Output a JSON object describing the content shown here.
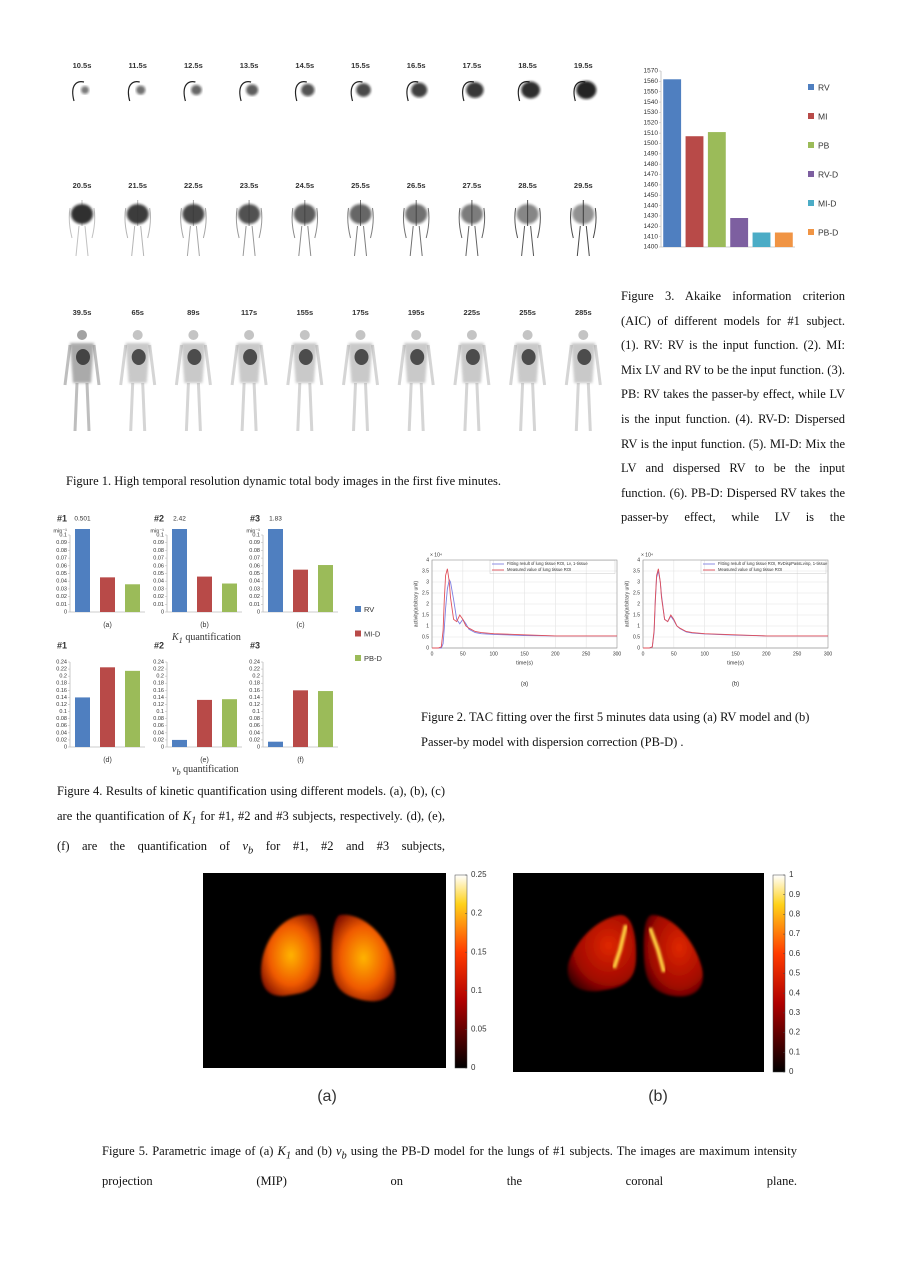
{
  "figure1": {
    "time_labels": [
      "10.5s",
      "11.5s",
      "12.5s",
      "13.5s",
      "14.5s",
      "15.5s",
      "16.5s",
      "17.5s",
      "18.5s",
      "19.5s",
      "20.5s",
      "21.5s",
      "22.5s",
      "23.5s",
      "24.5s",
      "25.5s",
      "26.5s",
      "27.5s",
      "28.5s",
      "29.5s",
      "39.5s",
      "65s",
      "89s",
      "117s",
      "155s",
      "175s",
      "195s",
      "225s",
      "255s",
      "285s"
    ],
    "caption": [
      "Figure 1. High temporal resolution dynamic total body images in the first five minutes."
    ]
  },
  "figure2": {
    "caption": [
      "Figure 2. TAC fitting over the first 5 minutes data using (a) RV model and (b) Passer-by model with dispersion correction (PB-D) ."
    ]
  },
  "figure3": {
    "caption": [
      "Figure 3. Akaike information criterion (AIC) of different models for #1 subject. (1). RV: RV is the input function. (2). MI: Mix LV and RV to be the input function. (3). PB: RV takes the passer-by effect, while LV is the input function. (4). RV-D: Dispersed RV is the input function. (5). MI-D: Mix the LV and dispersed RV to be the input function. (6). PB-D: Dispersed RV takes the passer-by effect, while LV is the"
    ]
  },
  "figure4": {
    "legend": [
      {
        "name": "RV",
        "color": "#4f7fc0"
      },
      {
        "name": "MI-D",
        "color": "#b84a48"
      },
      {
        "name": "PB-D",
        "color": "#9bbb59"
      }
    ],
    "k1_title": [
      [
        "K",
        "1"
      ],
      " quantification"
    ],
    "vb_title": [
      [
        "v",
        "b"
      ],
      " quantification"
    ],
    "caption": [
      "Figure 4. Results of kinetic quantification using different models. (a), (b), (c) are the quantification of ",
      [
        "K",
        "1"
      ],
      " for #1, #2 and #3 subjects, respectively. (d), (e), (f) are the quantification of ",
      [
        "v",
        "b"
      ],
      " for #1, #2 and #3 subjects,"
    ]
  },
  "figure5": {
    "panels": [
      {
        "label": "(a)",
        "colorbar_lim": [
          0,
          0.25
        ],
        "colorbar_ticks": [
          0,
          0.05,
          0.1,
          0.15,
          0.2,
          0.25
        ]
      },
      {
        "label": "(b)",
        "colorbar_lim": [
          0,
          1
        ],
        "colorbar_ticks": [
          0,
          0.1,
          0.2,
          0.3,
          0.4,
          0.5,
          0.6,
          0.7,
          0.8,
          0.9,
          1
        ]
      }
    ],
    "caption": [
      "Figure 5. Parametric image of (a) ",
      [
        "K",
        "1"
      ],
      " and (b) ",
      [
        "v",
        "b"
      ],
      " using the PB-D model for the lungs of #1 subjects. The images are maximum intensity projection (MIP) on the coronal plane."
    ]
  },
  "chart_data": [
    {
      "type": "bar",
      "categories": [
        "RV",
        "MI",
        "PB",
        "RV-D",
        "MI-D",
        "PB-D"
      ],
      "values": [
        1562,
        1507,
        1511,
        1428,
        1414,
        1414
      ],
      "colors": [
        "#4f7fc0",
        "#b84a48",
        "#9bbb59",
        "#7d5fa0",
        "#4bacc6",
        "#f09444"
      ],
      "ylim": [
        1400,
        1570
      ],
      "yticks": [
        1400,
        1410,
        1420,
        1430,
        1440,
        1450,
        1460,
        1470,
        1480,
        1490,
        1500,
        1510,
        1520,
        1530,
        1540,
        1550,
        1560,
        1570
      ],
      "legend": "right"
    },
    {
      "type": "bar",
      "title": "#1",
      "xlabel": "(a)",
      "unit": "min⁻¹",
      "values": [
        0.501,
        0.045,
        0.036
      ],
      "value_labels": [
        "0.501",
        null,
        null
      ],
      "ylim": [
        0,
        0.1
      ],
      "yticks": [
        0,
        0.01,
        0.02,
        0.03,
        0.04,
        0.05,
        0.06,
        0.07,
        0.08,
        0.09,
        0.1
      ]
    },
    {
      "type": "bar",
      "title": "#2",
      "xlabel": "(b)",
      "unit": "min⁻¹",
      "values": [
        2.42,
        0.046,
        0.037
      ],
      "value_labels": [
        "2.42",
        null,
        null
      ],
      "ylim": [
        0,
        0.1
      ],
      "yticks": [
        0,
        0.01,
        0.02,
        0.03,
        0.04,
        0.05,
        0.06,
        0.07,
        0.08,
        0.09,
        0.1
      ]
    },
    {
      "type": "bar",
      "title": "#3",
      "xlabel": "(c)",
      "unit": "min⁻¹",
      "values": [
        1.83,
        0.055,
        0.061
      ],
      "value_labels": [
        "1.83",
        null,
        null
      ],
      "ylim": [
        0,
        0.1
      ],
      "yticks": [
        0,
        0.01,
        0.02,
        0.03,
        0.04,
        0.05,
        0.06,
        0.07,
        0.08,
        0.09,
        0.1
      ]
    },
    {
      "type": "bar",
      "title": "#1",
      "xlabel": "(d)",
      "values": [
        0.14,
        0.225,
        0.215
      ],
      "ylim": [
        0,
        0.24
      ],
      "yticks": [
        0,
        0.02,
        0.04,
        0.06,
        0.08,
        0.1,
        0.12,
        0.14,
        0.16,
        0.18,
        0.2,
        0.22,
        0.24
      ]
    },
    {
      "type": "bar",
      "title": "#2",
      "xlabel": "(e)",
      "values": [
        0.02,
        0.133,
        0.135
      ],
      "ylim": [
        0,
        0.24
      ],
      "yticks": [
        0,
        0.02,
        0.04,
        0.06,
        0.08,
        0.1,
        0.12,
        0.14,
        0.16,
        0.18,
        0.2,
        0.22,
        0.24
      ]
    },
    {
      "type": "bar",
      "title": "#3",
      "xlabel": "(f)",
      "values": [
        0.015,
        0.16,
        0.158
      ],
      "ylim": [
        0,
        0.24
      ],
      "yticks": [
        0,
        0.02,
        0.04,
        0.06,
        0.08,
        0.1,
        0.12,
        0.14,
        0.16,
        0.18,
        0.2,
        0.22,
        0.24
      ]
    },
    {
      "type": "line",
      "panel": "(a)",
      "xlabel": "time(s)",
      "ylabel": "activity(arbitrary unit)",
      "y_multiplier": "× 10⁴",
      "x": [
        0,
        10,
        15,
        18,
        20,
        22,
        25,
        28,
        30,
        35,
        40,
        45,
        50,
        55,
        60,
        70,
        80,
        100,
        150,
        200,
        250,
        300
      ],
      "series": [
        {
          "name": "Fitting result of lung tissue ROI, Lv, 1-tissue",
          "color": "#7f7fe0",
          "values": [
            0,
            0,
            0,
            0.2,
            0.9,
            1.8,
            2.7,
            3.1,
            3.0,
            2.2,
            1.3,
            1.1,
            1.3,
            1.1,
            0.85,
            0.7,
            0.65,
            0.62,
            0.57,
            0.55,
            0.55,
            0.55
          ]
        },
        {
          "name": "Measured value of lung tissue ROI",
          "color": "#e0505a",
          "values": [
            0,
            0,
            0.05,
            0.8,
            2.2,
            3.3,
            3.6,
            3.0,
            2.3,
            1.3,
            1.2,
            1.5,
            1.3,
            1.0,
            0.9,
            0.75,
            0.7,
            0.65,
            0.6,
            0.55,
            0.55,
            0.55
          ]
        }
      ],
      "xlim": [
        0,
        300
      ],
      "xticks": [
        0,
        50,
        100,
        150,
        200,
        250,
        300
      ],
      "ylim": [
        0,
        4
      ],
      "yticks": [
        0,
        0.5,
        1,
        1.5,
        2,
        2.5,
        3,
        3.5,
        4
      ],
      "grid": true
    },
    {
      "type": "line",
      "panel": "(b)",
      "xlabel": "time(s)",
      "ylabel": "activity(arbitrary unit)",
      "y_multiplier": "× 10⁴",
      "x": [
        0,
        10,
        15,
        18,
        20,
        22,
        25,
        28,
        30,
        35,
        40,
        45,
        50,
        55,
        60,
        70,
        80,
        100,
        150,
        200,
        250,
        300
      ],
      "series": [
        {
          "name": "Fitting result of lung tissue ROI, RvDispPassLvinp, 1-tissue",
          "color": "#7f7fe0",
          "values": [
            0,
            0,
            0.05,
            0.7,
            2.1,
            3.2,
            3.5,
            3.0,
            2.4,
            1.3,
            1.2,
            1.45,
            1.25,
            1.0,
            0.88,
            0.73,
            0.68,
            0.64,
            0.58,
            0.55,
            0.55,
            0.55
          ]
        },
        {
          "name": "Measured value of lung tissue ROI",
          "color": "#e0505a",
          "values": [
            0,
            0,
            0.05,
            0.8,
            2.2,
            3.3,
            3.6,
            3.0,
            2.3,
            1.3,
            1.2,
            1.5,
            1.3,
            1.0,
            0.9,
            0.75,
            0.7,
            0.65,
            0.6,
            0.55,
            0.55,
            0.55
          ]
        }
      ],
      "xlim": [
        0,
        300
      ],
      "xticks": [
        0,
        50,
        100,
        150,
        200,
        250,
        300
      ],
      "ylim": [
        0,
        4
      ],
      "yticks": [
        0,
        0.5,
        1,
        1.5,
        2,
        2.5,
        3,
        3.5,
        4
      ],
      "grid": true
    }
  ]
}
